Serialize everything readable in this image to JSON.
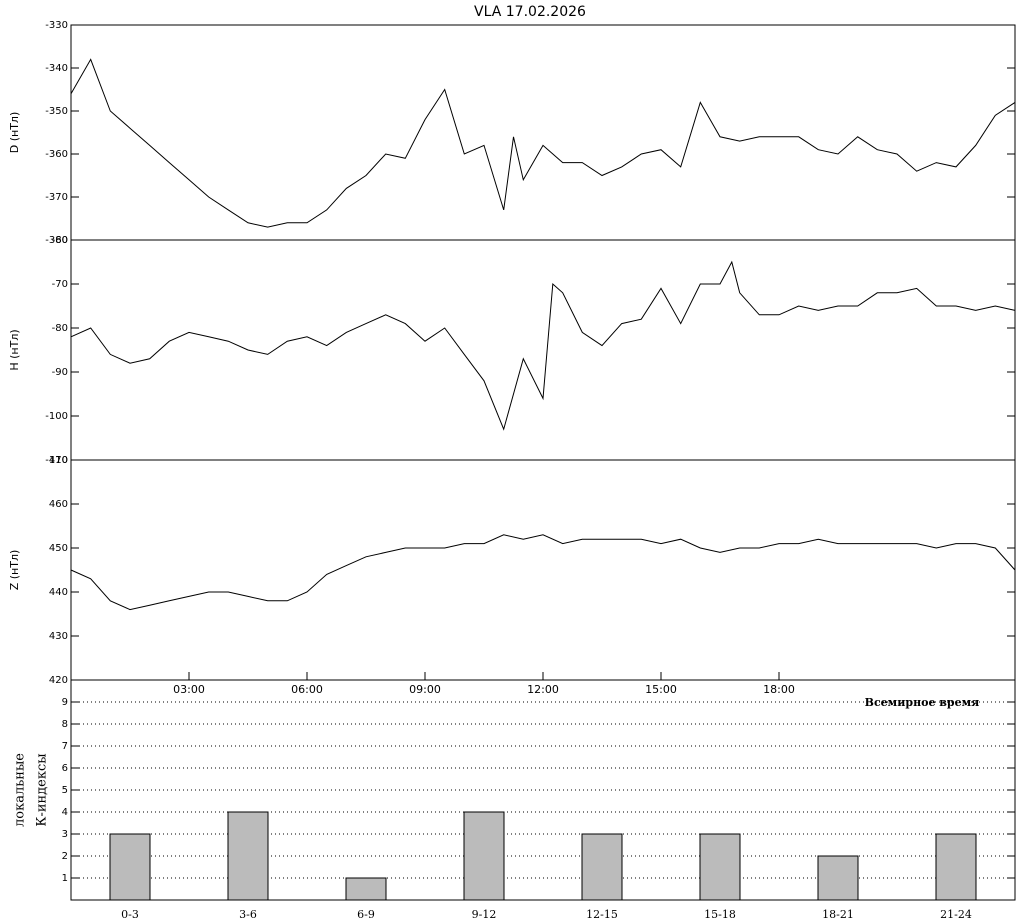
{
  "chart_data": [
    {
      "type": "line",
      "title": "VLA   17.02.2026",
      "ylabel": "D (нТл)",
      "color": "#000000",
      "x": [
        0,
        0.5,
        1,
        1.5,
        2,
        2.5,
        3,
        3.5,
        4,
        4.5,
        5,
        5.5,
        6,
        6.5,
        7,
        7.5,
        8,
        8.5,
        9,
        9.5,
        10,
        10.5,
        11,
        11.25,
        11.5,
        12,
        12.5,
        13,
        13.5,
        14,
        14.5,
        15,
        15.5,
        16,
        16.5,
        17,
        17.5,
        18,
        18.5,
        19,
        19.5,
        20,
        20.5,
        21,
        21.5,
        22,
        22.5,
        23,
        23.5,
        24
      ],
      "values": [
        -346,
        -338,
        -350,
        -354,
        -358,
        -362,
        -366,
        -370,
        -373,
        -376,
        -377,
        -376,
        -376,
        -373,
        -368,
        -365,
        -360,
        -361,
        -352,
        -345,
        -360,
        -358,
        -373,
        -356,
        -366,
        -358,
        -362,
        -362,
        -365,
        -363,
        -360,
        -359,
        -363,
        -348,
        -356,
        -357,
        -356,
        -356,
        -356,
        -359,
        -360,
        -356,
        -359,
        -360,
        -364,
        -362,
        -363,
        -358,
        -351,
        -348
      ],
      "xlim": [
        0,
        24
      ],
      "ylim": [
        -380,
        -330
      ],
      "yticks": [
        -380,
        -370,
        -360,
        -350,
        -340,
        -330
      ]
    },
    {
      "type": "line",
      "ylabel": "H (нТл)",
      "color": "#000000",
      "x": [
        0,
        0.5,
        1,
        1.5,
        2,
        2.5,
        3,
        3.5,
        4,
        4.5,
        5,
        5.5,
        6,
        6.5,
        7,
        7.5,
        8,
        8.5,
        9,
        9.5,
        10,
        10.5,
        11,
        11.5,
        12,
        12.25,
        12.5,
        13,
        13.5,
        14,
        14.5,
        15,
        15.5,
        16,
        16.5,
        16.8,
        17,
        17.5,
        18,
        18.5,
        19,
        19.5,
        20,
        20.5,
        21,
        21.5,
        22,
        22.5,
        23,
        23.5,
        24
      ],
      "values": [
        -82,
        -80,
        -86,
        -88,
        -87,
        -83,
        -81,
        -82,
        -83,
        -85,
        -86,
        -83,
        -82,
        -84,
        -81,
        -79,
        -77,
        -79,
        -83,
        -80,
        -86,
        -92,
        -103,
        -87,
        -96,
        -70,
        -72,
        -81,
        -84,
        -79,
        -78,
        -71,
        -79,
        -70,
        -70,
        -65,
        -72,
        -77,
        -77,
        -75,
        -76,
        -75,
        -75,
        -72,
        -72,
        -71,
        -75,
        -75,
        -76,
        -75,
        -76
      ],
      "xlim": [
        0,
        24
      ],
      "ylim": [
        -110,
        -60
      ],
      "yticks": [
        -110,
        -100,
        -90,
        -80,
        -70,
        -60
      ]
    },
    {
      "type": "line",
      "ylabel": "Z (нТл)",
      "color": "#000000",
      "xlabel": "Всемирное время",
      "x": [
        0,
        0.5,
        1,
        1.5,
        2,
        2.5,
        3,
        3.5,
        4,
        4.5,
        5,
        5.5,
        6,
        6.5,
        7,
        7.5,
        8,
        8.5,
        9,
        9.5,
        10,
        10.5,
        11,
        11.5,
        12,
        12.5,
        13,
        13.5,
        14,
        14.5,
        15,
        15.5,
        16,
        16.5,
        17,
        17.5,
        18,
        18.5,
        19,
        19.5,
        20,
        20.5,
        21,
        21.5,
        22,
        22.5,
        23,
        23.5,
        24
      ],
      "values": [
        445,
        443,
        438,
        436,
        437,
        438,
        439,
        440,
        440,
        439,
        438,
        438,
        440,
        444,
        446,
        448,
        449,
        450,
        450,
        450,
        451,
        451,
        453,
        452,
        453,
        451,
        452,
        452,
        452,
        452,
        451,
        452,
        450,
        449,
        450,
        450,
        451,
        451,
        452,
        451,
        451,
        451,
        451,
        451,
        450,
        451,
        451,
        450,
        445
      ],
      "xlim": [
        0,
        24
      ],
      "ylim": [
        420,
        470
      ],
      "yticks": [
        420,
        430,
        440,
        450,
        460,
        470
      ],
      "xticks": [
        {
          "value": 3,
          "label": "03:00"
        },
        {
          "value": 6,
          "label": "06:00"
        },
        {
          "value": 9,
          "label": "09:00"
        },
        {
          "value": 12,
          "label": "12:00"
        },
        {
          "value": 15,
          "label": "15:00"
        },
        {
          "value": 18,
          "label": "18:00"
        }
      ]
    },
    {
      "type": "bar",
      "ylabel": [
        "локальные",
        "К-индексы"
      ],
      "color": "#bbbbbb",
      "grid": true,
      "categories": [
        "0-3",
        "3-6",
        "6-9",
        "9-12",
        "12-15",
        "15-18",
        "18-21",
        "21-24"
      ],
      "values": [
        3,
        4,
        1,
        4,
        3,
        3,
        2,
        3
      ],
      "ylim": [
        0,
        10
      ],
      "yticks": [
        1,
        2,
        3,
        4,
        5,
        6,
        7,
        8,
        9
      ]
    }
  ]
}
